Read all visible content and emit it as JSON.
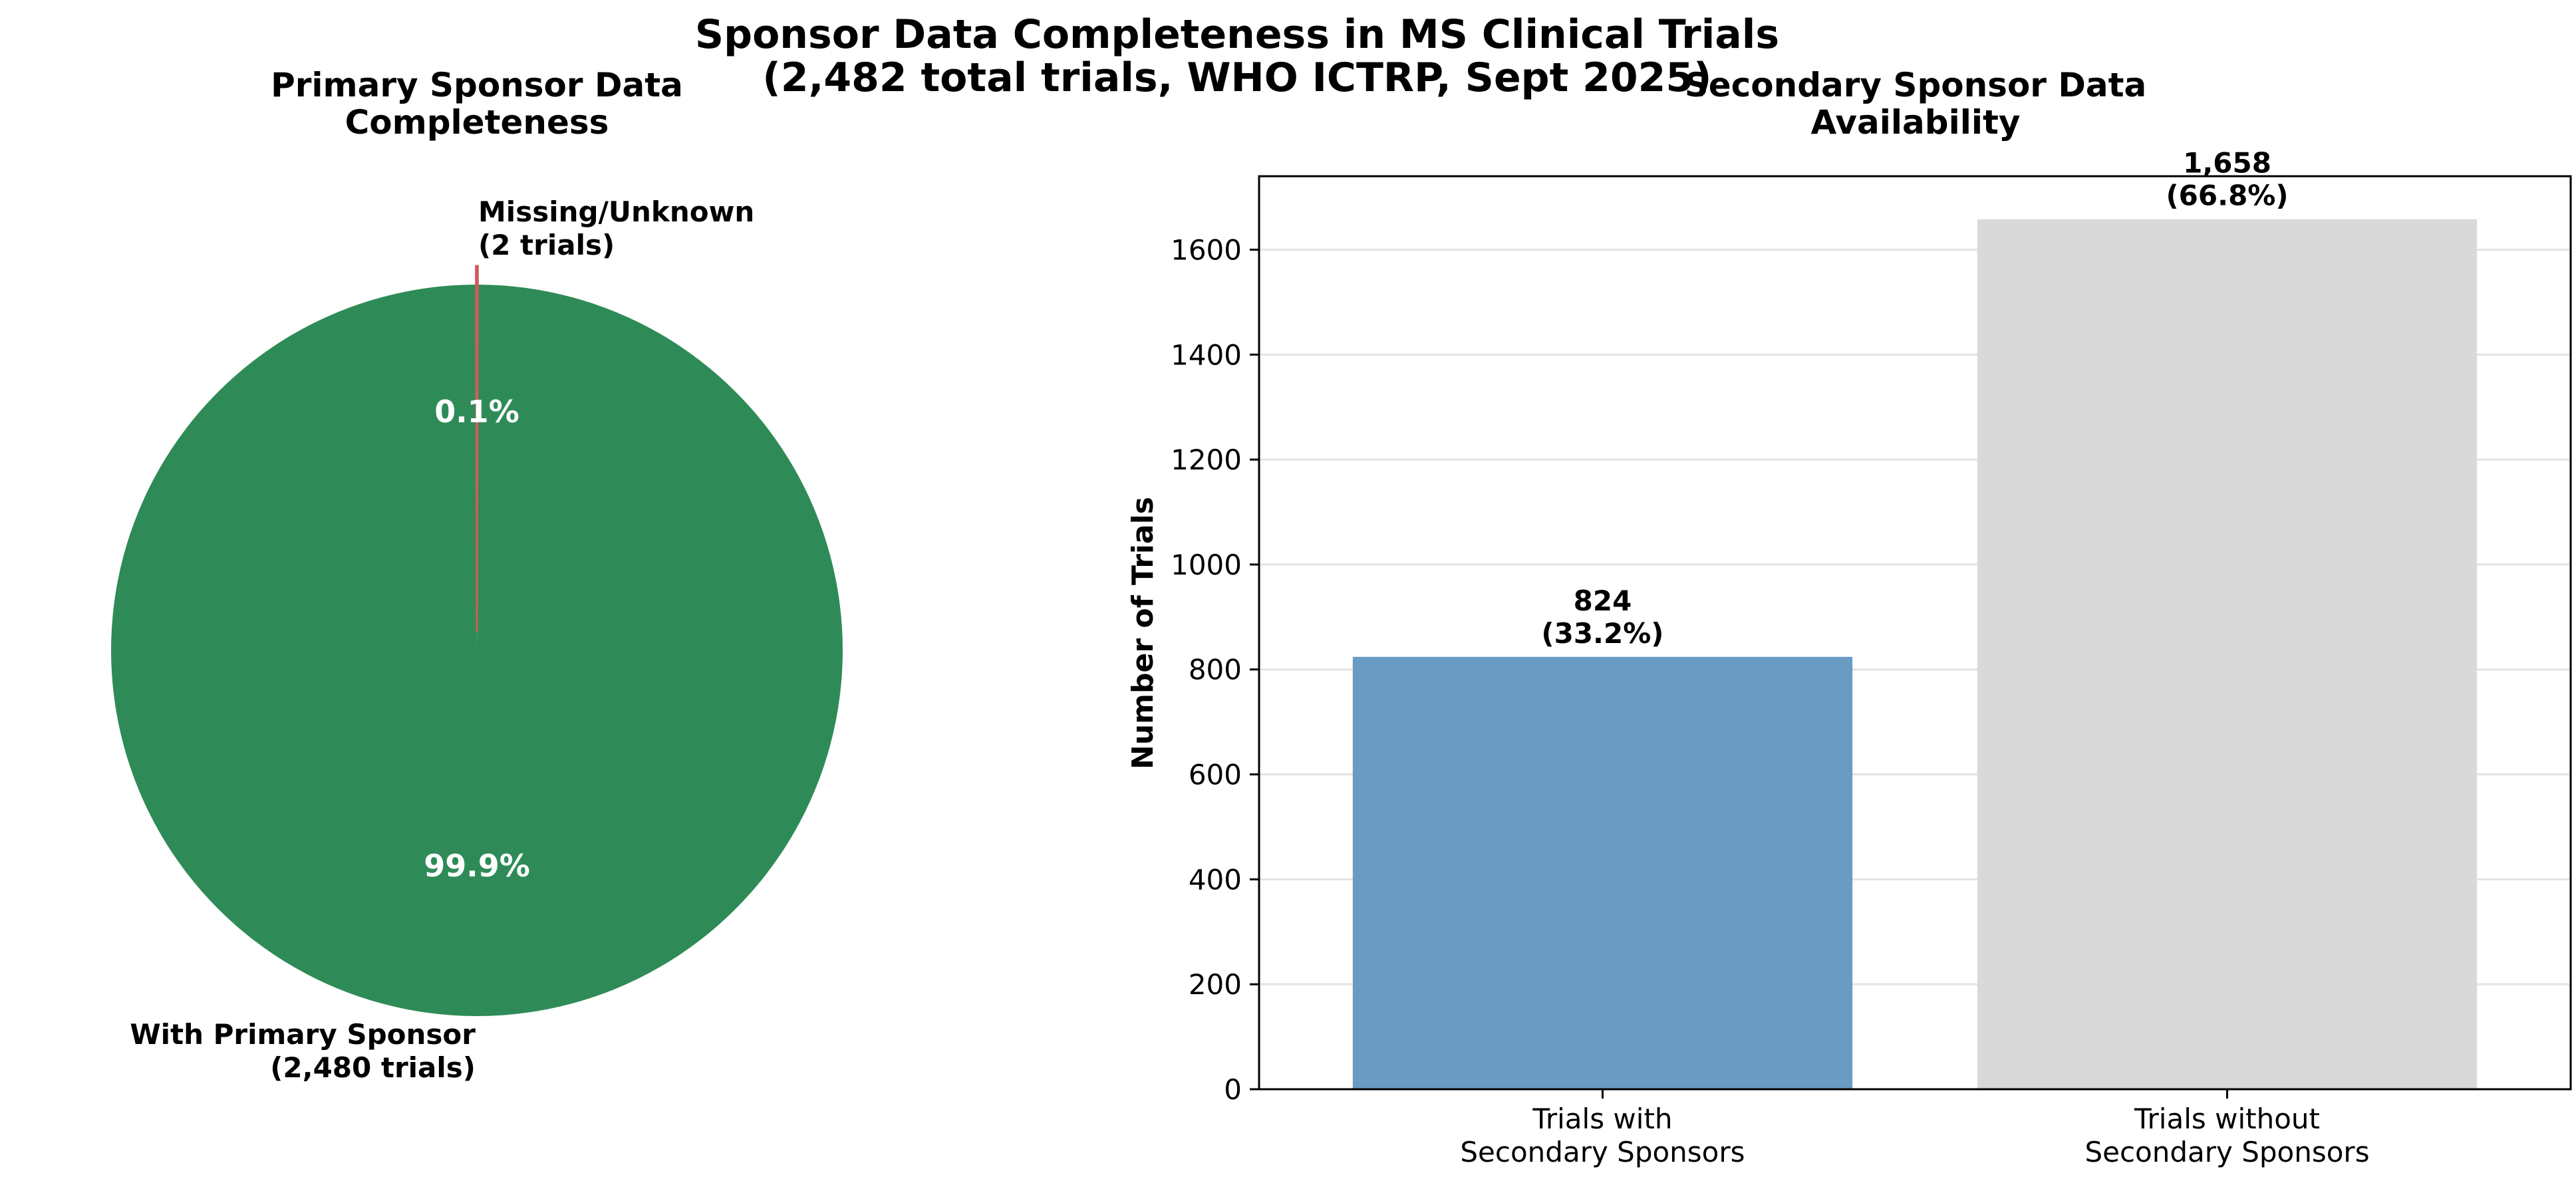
{
  "figure": {
    "title_line1": "Sponsor Data Completeness in MS Clinical Trials",
    "title_line2": "(2,482 total trials, WHO ICTRP, Sept 2025)"
  },
  "colors": {
    "pie_with": "#2E8B57",
    "pie_missing": "#CD5C5C",
    "bar_with": "#6A9BC3",
    "bar_without": "#D9D9D9",
    "grid": "#E3E3E3"
  },
  "chart_data": [
    {
      "type": "pie",
      "title_line1": "Primary Sponsor Data",
      "title_line2": "Completeness",
      "slices": [
        {
          "label_line1": "With Primary Sponsor",
          "label_line2": "(2,480 trials)",
          "value": 2480,
          "pct_label": "99.9%"
        },
        {
          "label_line1": "Missing/Unknown",
          "label_line2": "(2 trials)",
          "value": 2,
          "pct_label": "0.1%"
        }
      ]
    },
    {
      "type": "bar",
      "title_line1": "Secondary Sponsor Data",
      "title_line2": "Availability",
      "ylabel": "Number of Trials",
      "ylim": [
        0,
        1740
      ],
      "yticks": [
        0,
        200,
        400,
        600,
        800,
        1000,
        1200,
        1400,
        1600
      ],
      "grid": "horizontal",
      "categories": [
        {
          "line1": "Trials with",
          "line2": "Secondary Sponsors"
        },
        {
          "line1": "Trials without",
          "line2": "Secondary Sponsors"
        }
      ],
      "values": [
        824,
        1658
      ],
      "value_labels": [
        {
          "line1": "824",
          "line2": "(33.2%)"
        },
        {
          "line1": "1,658",
          "line2": "(66.8%)"
        }
      ]
    }
  ]
}
